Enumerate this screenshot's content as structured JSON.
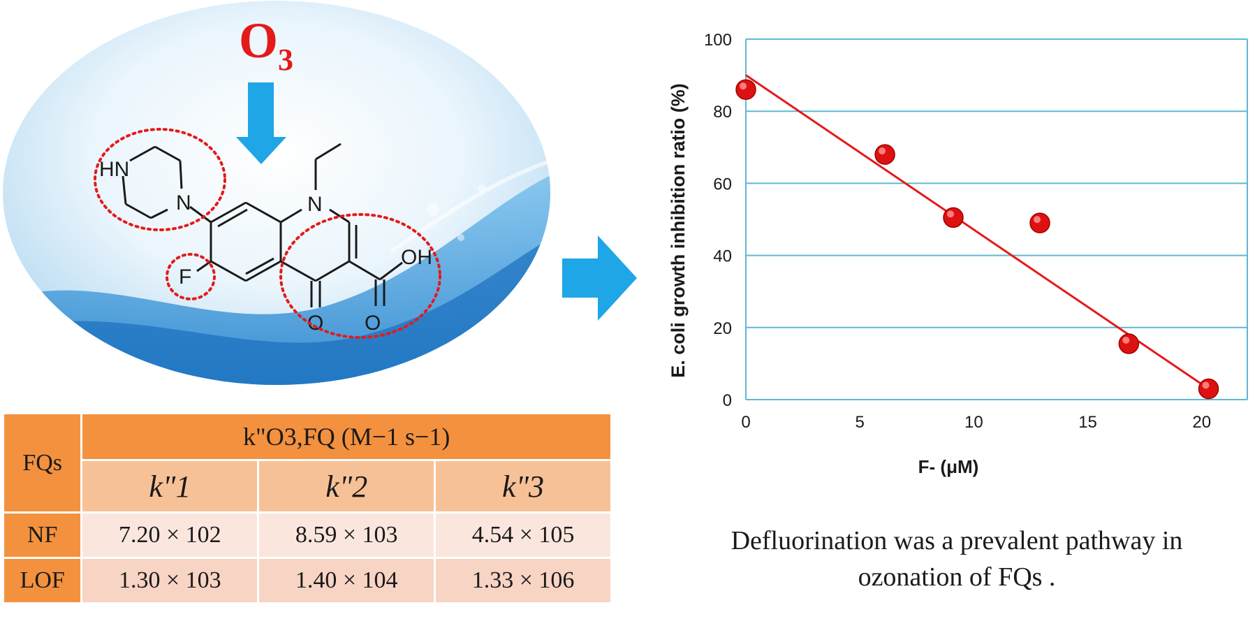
{
  "figure": {
    "reagent_label": "O",
    "reagent_subscript": "3",
    "molecule_labels": {
      "amine": "HN",
      "piperazine_n": "N",
      "quinolone_n": "N",
      "fluorine": "F",
      "hydroxyl": "OH",
      "keto_o": "O",
      "carboxyl_o": "O"
    },
    "caption_lines": [
      "Defluorination was a prevalent pathway in",
      "ozonation of FQs ."
    ],
    "colors": {
      "accent_blue": "#1ea6e6",
      "dot_red": "#dd1111",
      "table_orange": "#f3913f"
    }
  },
  "table": {
    "corner_header": "FQs",
    "main_header": "k\"O3,FQ (M−1 s−1)",
    "sub_headers": [
      "k\"1",
      "k\"2",
      "k\"3"
    ],
    "rows": [
      {
        "name": "NF",
        "values": [
          "7.20 × 102",
          "8.59 × 103",
          "4.54 × 105"
        ]
      },
      {
        "name": "LOF",
        "values": [
          "1.30 × 103",
          "1.40 × 104",
          "1.33 × 106"
        ]
      }
    ]
  },
  "chart_data": {
    "type": "scatter",
    "xlabel": "F- (μM)",
    "ylabel": "E. coli growth inhibition ratio (%)",
    "xlim": [
      0,
      22
    ],
    "ylim": [
      0,
      100
    ],
    "x_ticks": [
      0,
      5,
      10,
      15,
      20
    ],
    "y_ticks": [
      0,
      20,
      40,
      60,
      80,
      100
    ],
    "grid": "horizontal",
    "series": [
      {
        "x": [
          0,
          6.1,
          9.1,
          12.9,
          16.8,
          20.3
        ],
        "y": [
          86,
          68,
          50.5,
          49,
          15.5,
          3
        ]
      }
    ],
    "trendline": {
      "x": [
        0,
        20.3
      ],
      "y": [
        90,
        3
      ]
    }
  }
}
